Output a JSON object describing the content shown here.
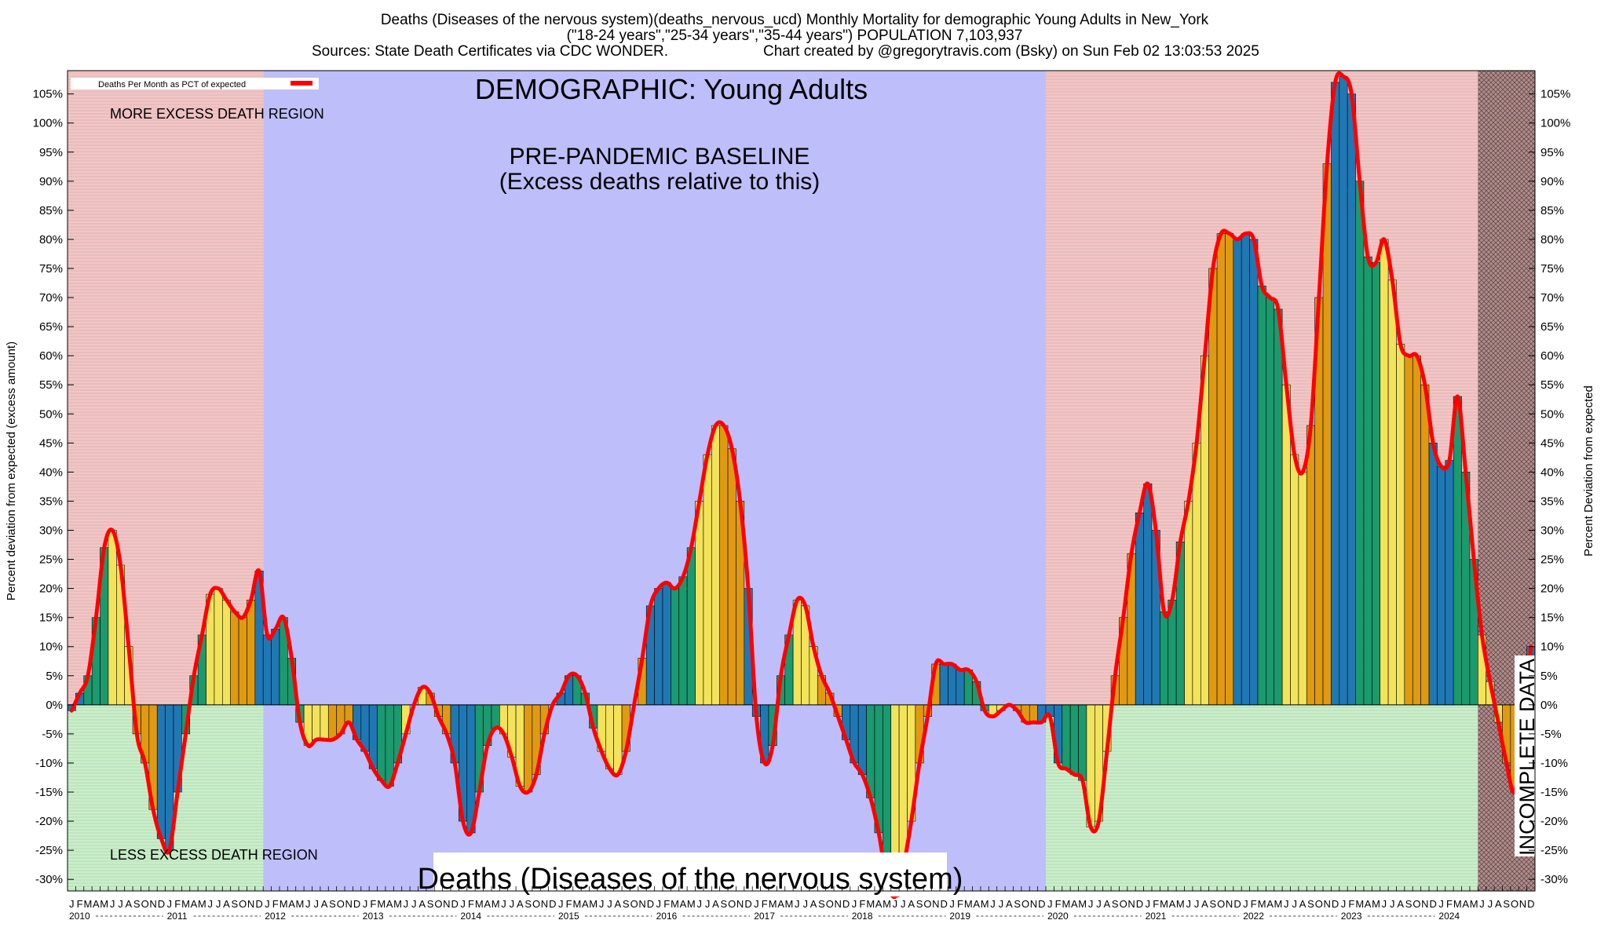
{
  "header": {
    "line1": "Deaths (Diseases of the nervous system)(deaths_nervous_ucd) Monthly Mortality for demographic Young Adults in New_York",
    "line2": "(\"18-24 years\",\"25-34 years\",\"35-44 years\") POPULATION 7,103,937",
    "line3_left": "Sources: State Death Certificates via CDC WONDER.",
    "line3_right": "Chart created by @gregorytravis.com (Bsky) on Sun Feb 02 13:03:53 2025"
  },
  "annotations": {
    "demographic": "DEMOGRAPHIC: Young Adults",
    "baseline_line1": "PRE-PANDEMIC BASELINE",
    "baseline_line2": "(Excess deaths relative to this)",
    "more_region": "MORE EXCESS DEATH REGION",
    "less_region": "LESS EXCESS DEATH REGION",
    "incomplete": "INCOMPLETE DATA",
    "bottom_title": "Deaths (Diseases of the nervous system)"
  },
  "colors": {
    "excess_region": "#f5c4c4",
    "deficit_region": "#c8f0c8",
    "baseline_region": "#bebefa",
    "incomplete_region": "#b08c8c",
    "line": "#ff0000",
    "bar_colors": [
      "#1f78b4",
      "#1a9a6e",
      "#f2e35a",
      "#e09a12"
    ]
  },
  "chart_data": {
    "type": "bar",
    "title": "Deaths (Diseases of the nervous system)(deaths_nervous_ucd) Monthly Mortality for demographic Young Adults in New_York",
    "ylabel_left": "Percent deviation from expected (excess amount)",
    "ylabel_right": "Percent Deviation from expected",
    "legend": "Deaths Per Month as PCT of expected",
    "legend_position": "top-left",
    "ylim": [
      -32,
      109
    ],
    "yticks": [
      -30,
      -25,
      -20,
      -15,
      -10,
      -5,
      0,
      5,
      10,
      15,
      20,
      25,
      30,
      35,
      40,
      45,
      50,
      55,
      60,
      65,
      70,
      75,
      80,
      85,
      90,
      95,
      100,
      105
    ],
    "ytick_labels": [
      "-30%",
      "-25%",
      "-20%",
      "-15%",
      "-10%",
      "-5%",
      "0%",
      "5%",
      "10%",
      "15%",
      "20%",
      "25%",
      "30%",
      "35%",
      "40%",
      "45%",
      "50%",
      "55%",
      "60%",
      "65%",
      "70%",
      "75%",
      "80%",
      "85%",
      "90%",
      "95%",
      "100%",
      "105%"
    ],
    "years": [
      "2010",
      "2011",
      "2012",
      "2013",
      "2014",
      "2015",
      "2016",
      "2017",
      "2018",
      "2019",
      "2020",
      "2021",
      "2022",
      "2023",
      "2024"
    ],
    "month_letters": [
      "J",
      "F",
      "M",
      "A",
      "M",
      "J",
      "J",
      "A",
      "S",
      "O",
      "N",
      "D"
    ],
    "grid": false,
    "baseline_period": [
      "2012-01",
      "2019-12"
    ],
    "incomplete_from": "2024-06",
    "values": [
      -1,
      2,
      5,
      15,
      27,
      30,
      24,
      10,
      -5,
      -10,
      -18,
      -23,
      -25,
      -15,
      -5,
      5,
      12,
      19,
      20,
      18,
      16,
      15,
      18,
      23,
      12,
      13,
      15,
      8,
      -3,
      -7,
      -6,
      -6,
      -6,
      -5,
      -3,
      -6,
      -8,
      -11,
      -13,
      -14,
      -10,
      -5,
      0,
      3,
      2,
      -2,
      -5,
      -10,
      -20,
      -22,
      -15,
      -7,
      -4,
      -5,
      -9,
      -14,
      -15,
      -12,
      -5,
      0,
      2,
      5,
      5,
      2,
      -4,
      -8,
      -11,
      -12,
      -8,
      0,
      8,
      17,
      20,
      21,
      20,
      22,
      27,
      35,
      43,
      48,
      48,
      44,
      35,
      20,
      -2,
      -10,
      -7,
      5,
      12,
      18,
      17,
      10,
      5,
      2,
      -2,
      -6,
      -10,
      -12,
      -16,
      -22,
      -30,
      -33,
      -28,
      -20,
      -10,
      -2,
      7,
      7,
      7,
      6,
      6,
      4,
      -1,
      -2,
      -1,
      0,
      -1,
      -3,
      -3,
      -3,
      -2,
      -10,
      -11,
      -12,
      -13,
      -21,
      -20,
      -8,
      5,
      15,
      26,
      33,
      38,
      30,
      16,
      18,
      28,
      35,
      45,
      60,
      75,
      81,
      81,
      80,
      81,
      80,
      72,
      70,
      68,
      55,
      43,
      40,
      48,
      70,
      93,
      107,
      108,
      105,
      90,
      77,
      76,
      80,
      73,
      62,
      60,
      60,
      55,
      45,
      41,
      42,
      53,
      40,
      25,
      12,
      4,
      -3,
      -10,
      -15,
      -5,
      10
    ]
  }
}
